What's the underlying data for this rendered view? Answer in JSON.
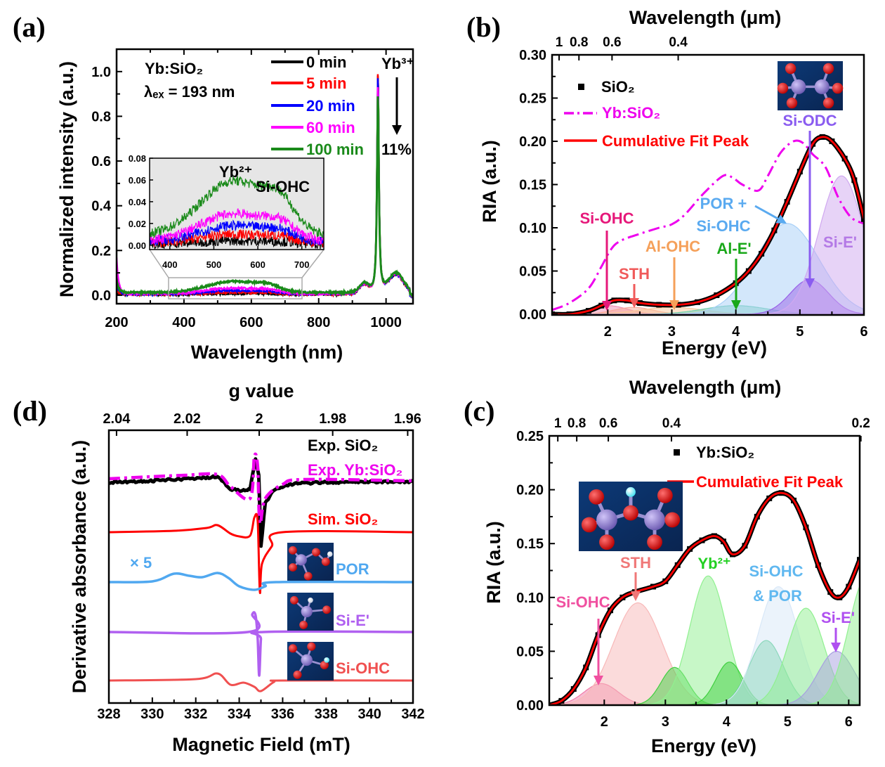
{
  "chart_data": [
    {
      "panel": "(a)",
      "type": "line",
      "xlabel": "Wavelength (nm)",
      "ylabel": "Normalized intensity (a.u.)",
      "xlim": [
        200,
        1080
      ],
      "ylim": [
        -0.04,
        1.1
      ],
      "xticks": [
        "200",
        "400",
        "600",
        "800",
        "1000"
      ],
      "yticks": [
        "0.0",
        "0.2",
        "0.4",
        "0.6",
        "0.8",
        "1.0"
      ],
      "legend_placement": "top-right",
      "annotations": {
        "sample": "Yb:SiO₂",
        "excitation": "λₑₓ = 193 nm",
        "yb3": "Yb³⁺",
        "decrease": "11%"
      },
      "series": [
        {
          "name": "0 min",
          "color": "#000000",
          "yb3_peak": 1.0,
          "band_550": 0.003,
          "uv_edge": 0.0
        },
        {
          "name": "5 min",
          "color": "#ff0000",
          "yb3_peak": 1.0,
          "band_550": 0.008,
          "uv_edge": 0.02
        },
        {
          "name": "20 min",
          "color": "#0000ff",
          "yb3_peak": 0.98,
          "band_550": 0.015,
          "uv_edge": 0.05
        },
        {
          "name": "60 min",
          "color": "#ff00ff",
          "yb3_peak": 0.94,
          "band_550": 0.025,
          "uv_edge": 0.16
        },
        {
          "name": "100 min",
          "color": "#1a8a1a",
          "yb3_peak": 0.89,
          "band_550": 0.05,
          "uv_edge": 0.06
        }
      ],
      "inset": {
        "xlim": [
          354,
          750
        ],
        "ylim": [
          -0.004,
          0.08
        ],
        "xticks": [
          "400",
          "500",
          "600",
          "700"
        ],
        "yticks": [
          "0.00",
          "0.02",
          "0.04",
          "0.06",
          "0.08"
        ],
        "annotations": {
          "yb2": "Yb²⁺",
          "sioHC": "Si-OHC"
        },
        "background": "#e6e6e6"
      }
    },
    {
      "panel": "(b)",
      "type": "line",
      "xlabel": "Energy (eV)",
      "ylabel": "RIA (a.u.)",
      "top_xlabel": "Wavelength (μm)",
      "xlim": [
        1.13,
        6.0
      ],
      "ylim": [
        0,
        0.3
      ],
      "xticks": [
        "2",
        "3",
        "4",
        "5",
        "6"
      ],
      "yticks": [
        "0.00",
        "0.05",
        "0.10",
        "0.15",
        "0.20",
        "0.25",
        "0.30"
      ],
      "top_xticks": [
        "1",
        "0.8",
        "0.6",
        "0.4"
      ],
      "legend_placement": "top-left",
      "legend": [
        "SiO₂",
        "Yb:SiO₂",
        "Cumulative Fit Peak"
      ],
      "series": {
        "sio2": {
          "name": "SiO₂",
          "color": "#000000",
          "x": [
            1.13,
            1.4,
            1.7,
            1.9,
            2.1,
            2.3,
            2.5,
            2.8,
            3.1,
            3.4,
            3.7,
            4.0,
            4.2,
            4.4,
            4.6,
            4.8,
            5.0,
            5.2,
            5.35,
            5.5,
            5.7,
            5.85,
            6.0
          ],
          "y": [
            0.0,
            0.0,
            0.004,
            0.01,
            0.016,
            0.016,
            0.013,
            0.011,
            0.011,
            0.014,
            0.022,
            0.036,
            0.05,
            0.07,
            0.097,
            0.13,
            0.165,
            0.197,
            0.205,
            0.2,
            0.18,
            0.155,
            0.11
          ]
        },
        "yb_sio2": {
          "name": "Yb:SiO₂",
          "color": "#ee00ee",
          "x": [
            1.13,
            1.4,
            1.7,
            1.9,
            2.05,
            2.2,
            2.5,
            2.8,
            3.0,
            3.2,
            3.5,
            3.8,
            3.95,
            4.1,
            4.35,
            4.5,
            4.7,
            4.9,
            5.05,
            5.2,
            5.4,
            5.6,
            5.8,
            6.0
          ],
          "y": [
            0.005,
            0.013,
            0.03,
            0.055,
            0.075,
            0.085,
            0.093,
            0.1,
            0.104,
            0.115,
            0.14,
            0.16,
            0.158,
            0.15,
            0.143,
            0.16,
            0.187,
            0.2,
            0.198,
            0.185,
            0.17,
            0.135,
            0.112,
            0.105
          ]
        },
        "fit": {
          "name": "Cumulative Fit Peak",
          "color": "#ff0000"
        }
      },
      "components": [
        {
          "label": "Si-OHC",
          "center_eV": 2.0,
          "height": 0.01,
          "sigma_eV": 0.3,
          "color": "#f08cb4"
        },
        {
          "label": "STH",
          "center_eV": 2.4,
          "height": 0.008,
          "sigma_eV": 0.3,
          "color": "#f8a898"
        },
        {
          "label": "Al-OHC",
          "center_eV": 3.0,
          "height": 0.008,
          "sigma_eV": 0.5,
          "color": "#f8c89c"
        },
        {
          "label": "Al-E'",
          "center_eV": 4.0,
          "height": 0.01,
          "sigma_eV": 0.5,
          "color": "#70d0b0"
        },
        {
          "label": "POR + Si-OHC",
          "center_eV": 4.8,
          "height": 0.105,
          "sigma_eV": 0.5,
          "color": "#a8d0f8"
        },
        {
          "label": "Si-ODC",
          "center_eV": 5.15,
          "height": 0.04,
          "sigma_eV": 0.3,
          "color": "#9860e8"
        },
        {
          "label": "Si-E'",
          "center_eV": 5.65,
          "height": 0.16,
          "sigma_eV": 0.35,
          "color": "#d0a8f0"
        }
      ],
      "annotations": [
        {
          "lines": [
            "Si-OHC"
          ],
          "color": "#e6187a"
        },
        {
          "lines": [
            "STH"
          ],
          "color": "#f05a5a"
        },
        {
          "lines": [
            "Al-OHC"
          ],
          "color": "#f5a05a"
        },
        {
          "lines": [
            "Al-E'"
          ],
          "color": "#1aa81a"
        },
        {
          "lines": [
            "POR +",
            "Si-OHC"
          ],
          "color": "#5aaaf0"
        },
        {
          "lines": [
            "Si-ODC"
          ],
          "color": "#8a5cf0"
        },
        {
          "lines": [
            "Si-E'"
          ],
          "color": "#b47ae6"
        }
      ]
    },
    {
      "panel": "(c)",
      "type": "line",
      "xlabel": "Energy (eV)",
      "ylabel": "RIA (a.u.)",
      "top_xlabel": "Wavelength (μm)",
      "xlim": [
        1.1,
        6.18
      ],
      "ylim": [
        0,
        0.25
      ],
      "xticks": [
        "2",
        "3",
        "4",
        "5",
        "6"
      ],
      "yticks": [
        "0.00",
        "0.05",
        "0.10",
        "0.15",
        "0.20",
        "0.25"
      ],
      "top_xticks": [
        "1",
        "0.8",
        "0.6",
        "0.4",
        "0.2"
      ],
      "legend_placement": "top-right",
      "legend": [
        "Yb:SiO₂",
        "Cumulative Fit Peak"
      ],
      "series": {
        "yb_sio2": {
          "name": "Yb:SiO₂",
          "color": "#000000",
          "x": [
            1.1,
            1.3,
            1.5,
            1.7,
            1.9,
            2.1,
            2.3,
            2.5,
            2.8,
            3.0,
            3.2,
            3.4,
            3.6,
            3.8,
            3.95,
            4.1,
            4.3,
            4.5,
            4.7,
            4.9,
            5.1,
            5.3,
            5.5,
            5.7,
            5.85,
            6.0,
            6.18
          ],
          "y": [
            0.0,
            0.004,
            0.015,
            0.035,
            0.065,
            0.088,
            0.1,
            0.105,
            0.11,
            0.115,
            0.13,
            0.145,
            0.153,
            0.157,
            0.152,
            0.14,
            0.148,
            0.175,
            0.192,
            0.197,
            0.19,
            0.165,
            0.13,
            0.105,
            0.1,
            0.11,
            0.135
          ]
        },
        "fit": {
          "name": "Cumulative Fit Peak",
          "color": "#ff0000"
        }
      },
      "components": [
        {
          "label": "Si-OHC",
          "center_eV": 1.95,
          "height": 0.02,
          "sigma_eV": 0.28,
          "color": "#f07ca8"
        },
        {
          "label": "STH",
          "center_eV": 2.55,
          "height": 0.095,
          "sigma_eV": 0.4,
          "color": "#f8b8b8"
        },
        {
          "center_eV": 3.15,
          "height": 0.035,
          "sigma_eV": 0.22,
          "color": "#40d040"
        },
        {
          "label": "Yb²⁺",
          "center_eV": 3.7,
          "height": 0.12,
          "sigma_eV": 0.3,
          "color": "#90f090"
        },
        {
          "center_eV": 4.05,
          "height": 0.04,
          "sigma_eV": 0.22,
          "color": "#40d040"
        },
        {
          "center_eV": 4.65,
          "height": 0.06,
          "sigma_eV": 0.28,
          "color": "#40c880"
        },
        {
          "label": "Si-OHC & POR",
          "center_eV": 4.85,
          "height": 0.11,
          "sigma_eV": 0.33,
          "color": "#d8e8f8"
        },
        {
          "center_eV": 5.3,
          "height": 0.09,
          "sigma_eV": 0.3,
          "color": "#90f090"
        },
        {
          "label": "Si-E'",
          "center_eV": 5.8,
          "height": 0.05,
          "sigma_eV": 0.3,
          "color": "#a8a0e0"
        },
        {
          "center_eV": 6.3,
          "height": 0.12,
          "sigma_eV": 0.3,
          "color": "#90f090"
        }
      ],
      "annotations": [
        {
          "lines": [
            "Si-OHC"
          ],
          "color": "#f050a0"
        },
        {
          "lines": [
            "STH"
          ],
          "color": "#f07878"
        },
        {
          "lines": [
            "Yb²⁺"
          ],
          "color": "#22d022"
        },
        {
          "lines": [
            "Si-OHC",
            "& POR"
          ],
          "color": "#60b8f0"
        },
        {
          "lines": [
            "Si-E'"
          ],
          "color": "#b050f0"
        }
      ]
    },
    {
      "panel": "(d)",
      "type": "line",
      "xlabel": "Magnetic Field (mT)",
      "ylabel": "Derivative  absorbance (a.u.)",
      "top_xlabel": "g value",
      "xlim": [
        328,
        342
      ],
      "xticks": [
        "328",
        "330",
        "332",
        "334",
        "336",
        "338",
        "340",
        "342"
      ],
      "top_xticks": [
        "2.04",
        "2.02",
        "2",
        "1.98",
        "1.96"
      ],
      "multiplier_label": "× 5",
      "series": [
        {
          "name": "Exp. SiO₂",
          "color": "#000000",
          "points": [
            [
              328,
              0
            ],
            [
              330,
              0.2
            ],
            [
              331,
              0.4
            ],
            [
              332,
              0.5
            ],
            [
              333,
              0.8
            ],
            [
              333.6,
              -1.0
            ],
            [
              334.2,
              -1.2
            ],
            [
              334.5,
              -0.9
            ],
            [
              334.75,
              3.2
            ],
            [
              334.9,
              1.0
            ],
            [
              335,
              -9.0
            ],
            [
              335.2,
              -3.0
            ],
            [
              335.6,
              -1.0
            ],
            [
              336.5,
              -0.2
            ],
            [
              338,
              0
            ],
            [
              342,
              0.1
            ]
          ]
        },
        {
          "name": "Exp. Yb:SiO₂",
          "color": "#ee00ee",
          "points": [
            [
              328,
              0.3
            ],
            [
              330,
              0.6
            ],
            [
              331.5,
              0.8
            ],
            [
              333,
              0.9
            ],
            [
              333.6,
              -0.8
            ],
            [
              334.5,
              -2.5
            ],
            [
              334.7,
              3.5
            ],
            [
              334.85,
              2
            ],
            [
              334.95,
              -6
            ],
            [
              335.2,
              -2.5
            ],
            [
              336,
              -0.5
            ],
            [
              337,
              0.2
            ],
            [
              342,
              0
            ]
          ]
        },
        {
          "name": "Sim. SiO₂",
          "color": "#ff0000",
          "points": [
            [
              328,
              0
            ],
            [
              331,
              0.2
            ],
            [
              332.5,
              0.6
            ],
            [
              333,
              1.0
            ],
            [
              333.6,
              -0.2
            ],
            [
              334,
              -0.6
            ],
            [
              334.5,
              -0.5
            ],
            [
              334.7,
              2.1
            ],
            [
              334.85,
              1.5
            ],
            [
              334.95,
              -8.5
            ],
            [
              335.05,
              -4.5
            ],
            [
              335.5,
              -2.0
            ],
            [
              336,
              0
            ],
            [
              342,
              0
            ]
          ]
        },
        {
          "name": "POR",
          "color": "#50a8f0",
          "points": [
            [
              328,
              0
            ],
            [
              330,
              0.1
            ],
            [
              331,
              1.2
            ],
            [
              331.7,
              0.9
            ],
            [
              332.3,
              0.7
            ],
            [
              333,
              1.3
            ],
            [
              333.5,
              0.6
            ],
            [
              334,
              -0.6
            ],
            [
              334.7,
              -1.1
            ],
            [
              335.2,
              -0.6
            ],
            [
              335.7,
              0
            ],
            [
              342,
              0
            ]
          ]
        },
        {
          "name": "Si-E'",
          "color": "#b060f0",
          "points": [
            [
              328,
              0
            ],
            [
              334.4,
              0
            ],
            [
              334.6,
              2.5
            ],
            [
              334.75,
              2.4
            ],
            [
              334.85,
              -1
            ],
            [
              334.92,
              -6.2
            ],
            [
              335.0,
              -1
            ],
            [
              335.1,
              0
            ],
            [
              342,
              0
            ]
          ]
        },
        {
          "name": "Si-OHC",
          "color": "#f05050",
          "points": [
            [
              328,
              0
            ],
            [
              332,
              0.2
            ],
            [
              333,
              1.0
            ],
            [
              333.6,
              -0.6
            ],
            [
              334.2,
              -0.3
            ],
            [
              334.7,
              -0.9
            ],
            [
              335.0,
              -1.5
            ],
            [
              335.6,
              -0.2
            ],
            [
              336,
              0
            ],
            [
              342,
              0
            ]
          ]
        }
      ]
    }
  ]
}
